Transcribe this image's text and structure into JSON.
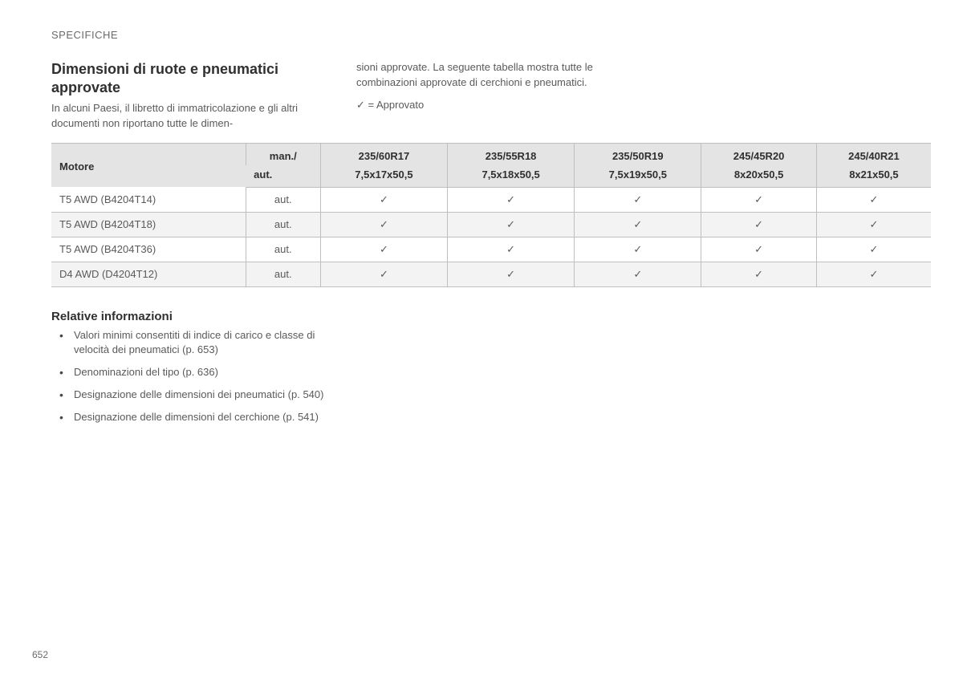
{
  "section_label": "SPECIFICHE",
  "heading": "Dimensioni di ruote e pneumatici approvate",
  "intro_col1": "In alcuni Paesi, il libretto di immatricolazione e gli altri documenti non riportano tutte le dimen-",
  "intro_col2": "sioni approvate. La seguente tabella mostra tutte le combinazioni approvate di cerchioni e pneumatici.",
  "legend": "✓ = Approvato",
  "table": {
    "header_engine": "Motore",
    "header_trans_top": "man./",
    "header_trans_bottom": "aut.",
    "sizes": [
      {
        "tire": "235/60R17",
        "rim": "7,5x17x50,5"
      },
      {
        "tire": "235/55R18",
        "rim": "7,5x18x50,5"
      },
      {
        "tire": "235/50R19",
        "rim": "7,5x19x50,5"
      },
      {
        "tire": "245/45R20",
        "rim": "8x20x50,5"
      },
      {
        "tire": "245/40R21",
        "rim": "8x21x50,5"
      }
    ],
    "rows": [
      {
        "engine": "T5 AWD (B4204T14)",
        "trans": "aut.",
        "ok": [
          "✓",
          "✓",
          "✓",
          "✓",
          "✓"
        ]
      },
      {
        "engine": "T5 AWD (B4204T18)",
        "trans": "aut.",
        "ok": [
          "✓",
          "✓",
          "✓",
          "✓",
          "✓"
        ]
      },
      {
        "engine": "T5 AWD (B4204T36)",
        "trans": "aut.",
        "ok": [
          "✓",
          "✓",
          "✓",
          "✓",
          "✓"
        ]
      },
      {
        "engine": "D4 AWD (D4204T12)",
        "trans": "aut.",
        "ok": [
          "✓",
          "✓",
          "✓",
          "✓",
          "✓"
        ]
      }
    ]
  },
  "related_heading": "Relative informazioni",
  "related_items": [
    "Valori minimi consentiti di indice di carico e classe di velocità dei pneumatici (p. 653)",
    "Denominazioni del tipo (p. 636)",
    "Designazione delle dimensioni dei pneumatici (p. 540)",
    "Designazione delle dimensioni del cerchione (p. 541)"
  ],
  "page_number": "652"
}
